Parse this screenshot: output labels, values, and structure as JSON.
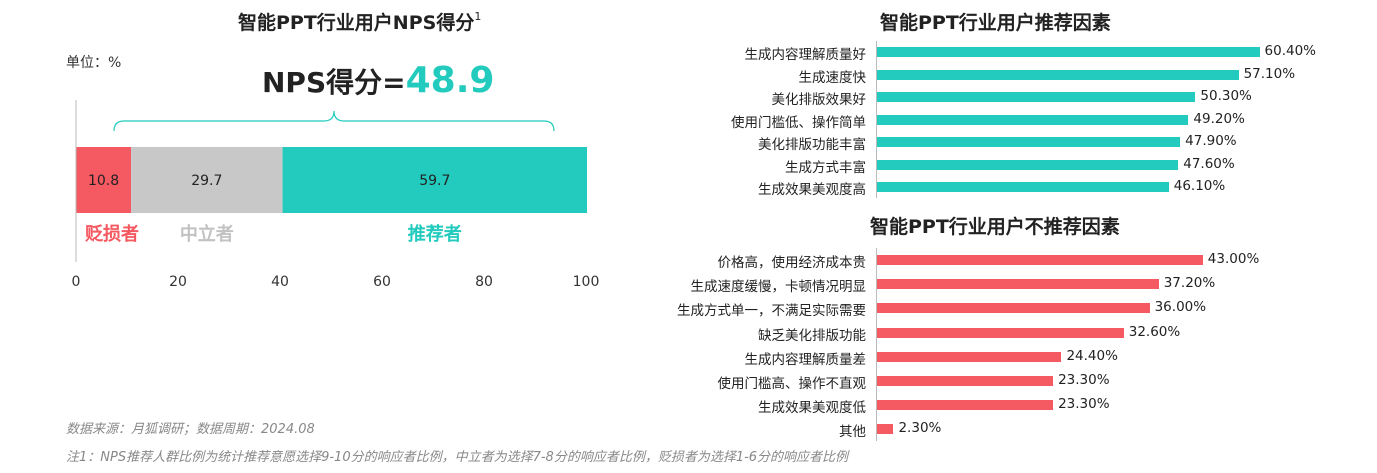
{
  "colors": {
    "detractor": "#f55961",
    "passive": "#c8c8c8",
    "promoter": "#22cbbd",
    "reason_bar_pos": "#22cbbd",
    "reason_bar_neg": "#f55961"
  },
  "chart_data": [
    {
      "type": "bar",
      "orientation": "horizontal-stacked",
      "title": "智能PPT行业用户NPS得分",
      "title_sup": "1",
      "unit_label": "单位：%",
      "nps_label": "NPS得分=",
      "nps_value": "48.9",
      "xlim": [
        0,
        100
      ],
      "xticks": [
        0,
        20,
        40,
        60,
        80,
        100
      ],
      "segments": [
        {
          "name": "贬损者",
          "value": 10.8,
          "label": "10.8"
        },
        {
          "name": "中立者",
          "value": 29.7,
          "label": "29.7"
        },
        {
          "name": "推荐者",
          "value": 59.7,
          "label": "59.7"
        }
      ]
    },
    {
      "type": "bar",
      "orientation": "horizontal",
      "title": "智能PPT行业用户推荐因素",
      "categories": [
        "生成内容理解质量好",
        "生成速度快",
        "美化排版效果好",
        "使用门槛低、操作简单",
        "美化排版功能丰富",
        "生成方式丰富",
        "生成效果美观度高"
      ],
      "values": [
        60.4,
        57.1,
        50.3,
        49.2,
        47.9,
        47.6,
        46.1
      ],
      "labels": [
        "60.40%",
        "57.10%",
        "50.30%",
        "49.20%",
        "47.90%",
        "47.60%",
        "46.10%"
      ]
    },
    {
      "type": "bar",
      "orientation": "horizontal",
      "title": "智能PPT行业用户不推荐因素",
      "categories": [
        "价格高，使用经济成本贵",
        "生成速度缓慢，卡顿情况明显",
        "生成方式单一，不满足实际需要",
        "缺乏美化排版功能",
        "生成内容理解质量差",
        "使用门槛高、操作不直观",
        "生成效果美观度低",
        "其他"
      ],
      "values": [
        43.0,
        37.2,
        36.0,
        32.6,
        24.4,
        23.3,
        23.3,
        2.3
      ],
      "labels": [
        "43.00%",
        "37.20%",
        "36.00%",
        "32.60%",
        "24.40%",
        "23.30%",
        "23.30%",
        "2.30%"
      ]
    }
  ],
  "footnotes": {
    "source": "数据来源：月狐调研；数据周期：2024.08",
    "note": "注1：NPS推荐人群比例为统计推荐意愿选择9-10分的响应者比例，中立者为选择7-8分的响应者比例，贬损者为选择1-6分的响应者比例"
  }
}
